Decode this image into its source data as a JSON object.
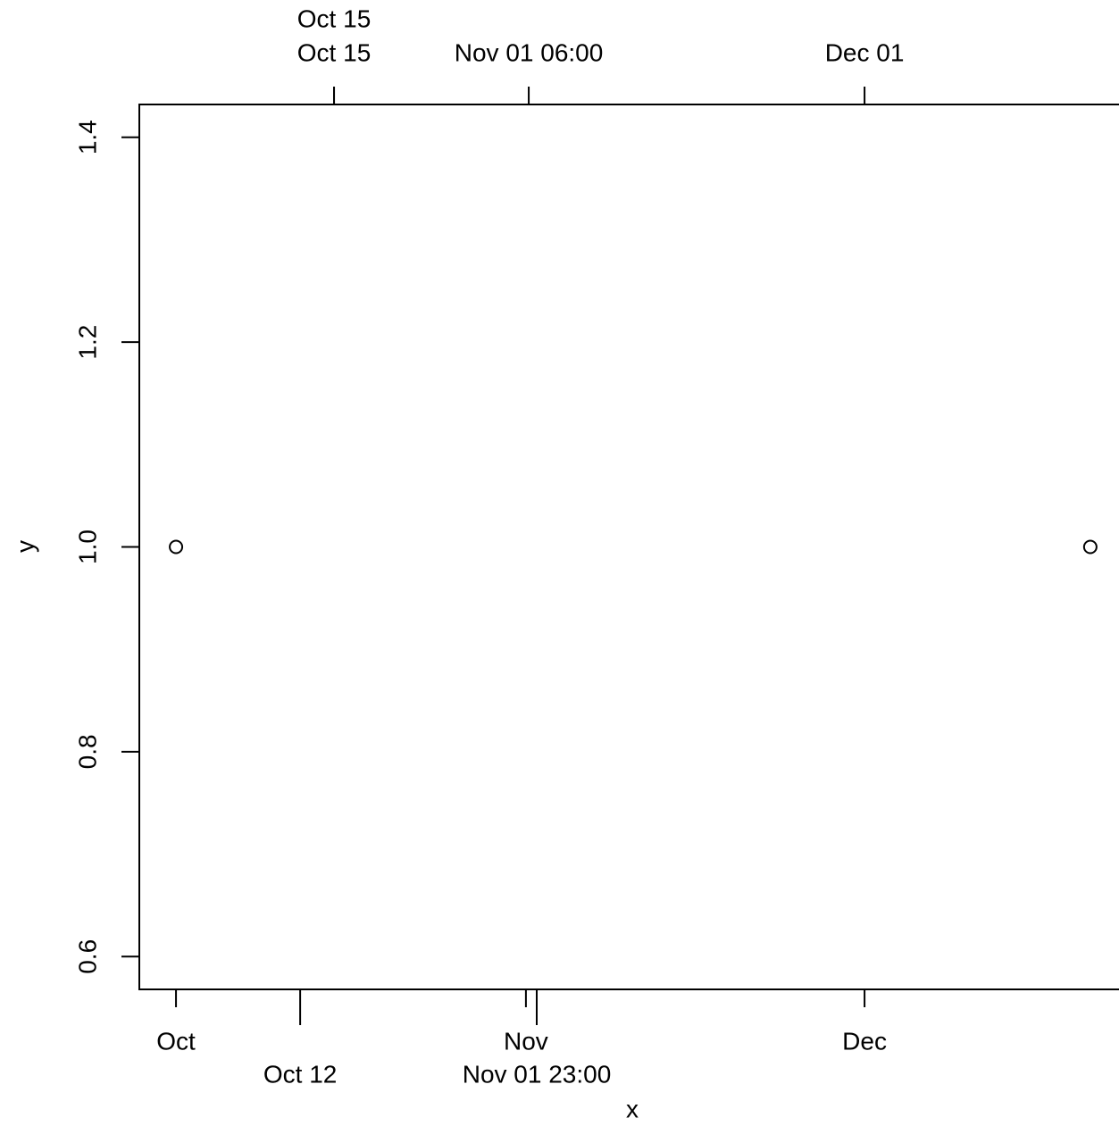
{
  "chart_data": {
    "type": "scatter",
    "x_label": "x",
    "y_label": "y",
    "x": [
      "10-01 00:00",
      "12-21 00:00"
    ],
    "values": [
      1.0,
      1.0
    ],
    "color": "#000000",
    "xlim": [
      "09-27 18:00",
      "12-24 06:00"
    ],
    "ylim": [
      0.568,
      1.432
    ],
    "yticks": [
      {
        "value": 0.6,
        "label": "0.6"
      },
      {
        "value": 0.8,
        "label": "0.8"
      },
      {
        "value": 1.0,
        "label": "1.0"
      },
      {
        "value": 1.2,
        "label": "1.2"
      },
      {
        "value": 1.4,
        "label": "1.4"
      }
    ],
    "xticks": [
      {
        "value": "10-01 00:00",
        "label": "Oct"
      },
      {
        "value": "10-12 00:00",
        "label": "Oct 12"
      },
      {
        "value": "11-01 00:00",
        "label": "Nov"
      },
      {
        "value": "11-01 23:00",
        "label": "Nov 01 23:00"
      },
      {
        "value": "12-01 00:00",
        "label": "Dec"
      }
    ],
    "x2ticks": [
      {
        "value": "10-15 00:00",
        "label": "Oct 15"
      },
      {
        "value": "10-15 00:00",
        "label": "Oct 15"
      },
      {
        "value": "11-01 06:00",
        "label": "Nov 01 06:00"
      },
      {
        "value": "12-01 00:00",
        "label": "Dec 01"
      }
    ],
    "grid": false
  }
}
